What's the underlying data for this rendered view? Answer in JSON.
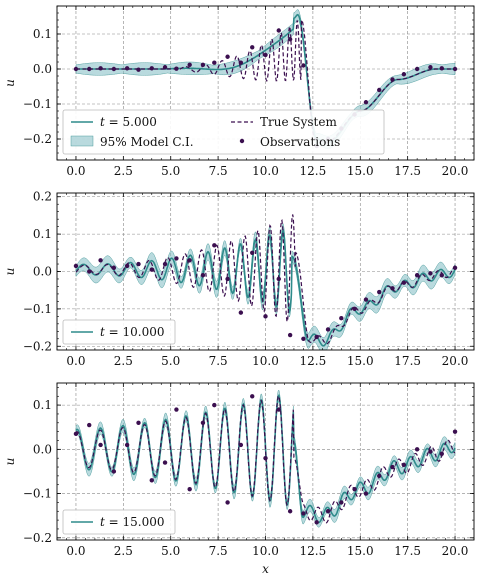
{
  "colors": {
    "model": "#2e8b8b",
    "band": "#7fbcc2",
    "truth": "#3b0f4f",
    "obs": "#3b0f4f",
    "grid": "#888888"
  },
  "chart_data": [
    {
      "type": "line",
      "xlabel": "",
      "ylabel": "u",
      "xlim": [
        -1,
        21
      ],
      "ylim": [
        -0.26,
        0.18
      ],
      "xticks": [
        0,
        2.5,
        5,
        7.5,
        10,
        12.5,
        15,
        17.5,
        20
      ],
      "xtick_labels": [
        "0.0",
        "2.5",
        "5.0",
        "7.5",
        "10.0",
        "12.5",
        "15.0",
        "17.5",
        "20.0"
      ],
      "yticks": [
        0.1,
        0,
        -0.1,
        -0.2
      ],
      "ytick_labels": [
        "0.1",
        "0.0",
        "−0.1",
        "−0.2"
      ],
      "grid": true,
      "legend_loc": "lower-left",
      "series": [
        {
          "name": "t = 5.000",
          "label_var": "t",
          "label_value": "= 5.000",
          "kind": "model_mean"
        },
        {
          "name": "95% Model C.I.",
          "kind": "band"
        },
        {
          "name": "True System",
          "kind": "truth"
        },
        {
          "name": "Observations",
          "kind": "observations"
        }
      ],
      "observations": {
        "x": [
          0,
          0.7,
          1.3,
          2.0,
          2.7,
          3.3,
          4.0,
          4.7,
          5.3,
          6.0,
          6.7,
          7.3,
          8.0,
          8.7,
          9.3,
          10.0,
          10.7,
          11.3,
          12.0,
          12.7,
          13.3,
          14.0,
          14.7,
          15.3,
          16.0,
          16.7,
          17.3,
          18.0,
          18.7,
          19.3,
          20.0
        ],
        "y": [
          0.0,
          0.0,
          0.002,
          0.0,
          0.002,
          -0.002,
          0.002,
          0.005,
          0.001,
          0.012,
          0.012,
          0.018,
          0.035,
          0.018,
          0.062,
          0.04,
          0.11,
          0.085,
          0.01,
          -0.22,
          -0.2,
          -0.17,
          -0.13,
          -0.095,
          -0.06,
          -0.03,
          -0.015,
          0.0,
          0.005,
          0.002,
          0.0
        ]
      }
    },
    {
      "type": "line",
      "xlabel": "",
      "ylabel": "u",
      "xlim": [
        -1,
        21
      ],
      "ylim": [
        -0.21,
        0.21
      ],
      "xticks": [
        0,
        2.5,
        5,
        7.5,
        10,
        12.5,
        15,
        17.5,
        20
      ],
      "xtick_labels": [
        "0.0",
        "2.5",
        "5.0",
        "7.5",
        "10.0",
        "12.5",
        "15.0",
        "17.5",
        "20.0"
      ],
      "yticks": [
        0.2,
        0.1,
        0,
        -0.1,
        -0.2
      ],
      "ytick_labels": [
        "0.2",
        "0.1",
        "0.0",
        "−0.1",
        "−0.2"
      ],
      "grid": true,
      "legend_loc": "lower-left",
      "series": [
        {
          "name": "t = 10.000",
          "label_var": "t",
          "label_value": "= 10.000",
          "kind": "model_mean"
        }
      ],
      "observations": {
        "x": [
          0,
          0.7,
          1.3,
          2.0,
          2.7,
          3.3,
          4.0,
          4.7,
          5.3,
          6.0,
          6.7,
          7.3,
          8.0,
          8.7,
          9.3,
          10.0,
          10.7,
          11.3,
          12.0,
          12.7,
          13.3,
          14.0,
          14.7,
          15.3,
          16.0,
          16.7,
          17.3,
          18.0,
          18.7,
          19.3,
          20.0
        ],
        "y": [
          0.015,
          0.0,
          0.03,
          0.01,
          0.015,
          0.02,
          0.005,
          0.02,
          0.035,
          0.03,
          -0.01,
          0.07,
          -0.02,
          -0.11,
          0.05,
          -0.12,
          -0.02,
          -0.17,
          -0.18,
          -0.175,
          -0.155,
          -0.125,
          -0.1,
          -0.075,
          -0.055,
          -0.045,
          -0.03,
          -0.01,
          -0.005,
          -0.01,
          0.01
        ]
      }
    },
    {
      "type": "line",
      "xlabel": "x",
      "ylabel": "u",
      "xlim": [
        -1,
        21
      ],
      "ylim": [
        -0.205,
        0.15
      ],
      "xticks": [
        0,
        2.5,
        5,
        7.5,
        10,
        12.5,
        15,
        17.5,
        20
      ],
      "xtick_labels": [
        "0.0",
        "2.5",
        "5.0",
        "7.5",
        "10.0",
        "12.5",
        "15.0",
        "17.5",
        "20.0"
      ],
      "yticks": [
        0.1,
        0,
        -0.1,
        -0.2
      ],
      "ytick_labels": [
        "0.1",
        "0.0",
        "−0.1",
        "−0.2"
      ],
      "grid": true,
      "legend_loc": "lower-left",
      "series": [
        {
          "name": "t = 15.000",
          "label_var": "t",
          "label_value": "= 15.000",
          "kind": "model_mean"
        }
      ],
      "observations": {
        "x": [
          0,
          0.7,
          1.3,
          2.0,
          2.7,
          3.3,
          4.0,
          4.7,
          5.3,
          6.0,
          6.7,
          7.3,
          8.0,
          8.7,
          9.3,
          10.0,
          10.7,
          11.3,
          12.0,
          12.7,
          13.3,
          14.0,
          14.7,
          15.3,
          16.0,
          16.7,
          17.3,
          18.0,
          18.7,
          19.3,
          20.0
        ],
        "y": [
          0.035,
          0.055,
          0.01,
          -0.05,
          0.01,
          0.06,
          -0.07,
          -0.03,
          0.09,
          -0.09,
          0.06,
          0.1,
          -0.12,
          0.01,
          0.12,
          -0.02,
          0.09,
          -0.14,
          -0.145,
          -0.165,
          -0.14,
          -0.12,
          -0.09,
          -0.1,
          -0.06,
          -0.04,
          -0.035,
          0.0,
          -0.005,
          -0.01,
          0.04
        ]
      }
    }
  ]
}
